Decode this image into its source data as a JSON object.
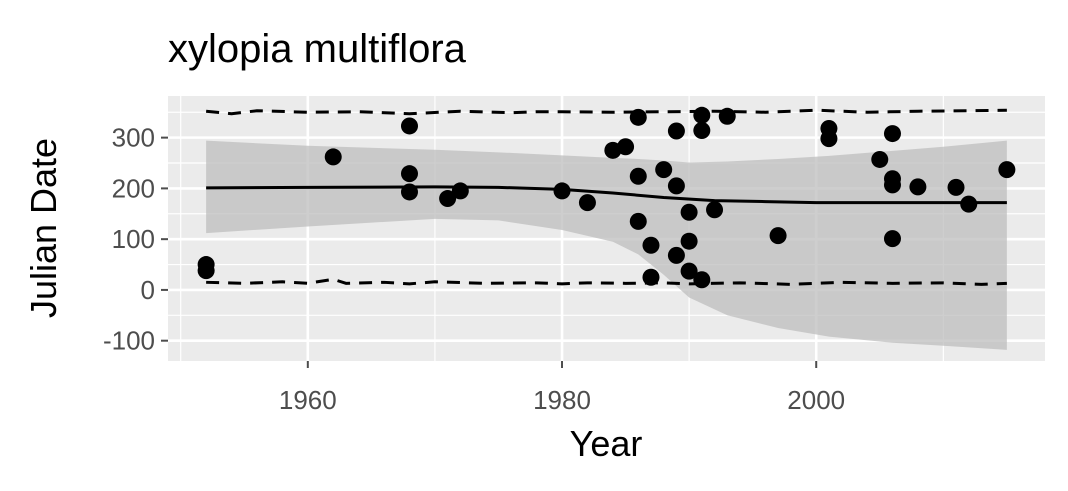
{
  "chart_data": {
    "type": "scatter",
    "title": "xylopia multiflora",
    "xlabel": "Year",
    "ylabel": "Julian Date",
    "xlim": [
      1949,
      2018
    ],
    "ylim": [
      -140,
      382
    ],
    "x_ticks": [
      1960,
      1980,
      2000
    ],
    "y_ticks": [
      300,
      200,
      100,
      0,
      -100
    ],
    "x_tick_labels": [
      "1960",
      "1980",
      "2000"
    ],
    "y_tick_labels": [
      "300",
      "200",
      "100",
      "0",
      "-100"
    ],
    "grid": true,
    "legend": "none",
    "colors": {
      "panel": "#ebebeb",
      "grid": "#ffffff",
      "points": "#000000",
      "ribbon": "#bdbdbd",
      "trend": "#000000",
      "ticks": "#4d4d4d"
    },
    "series": [
      {
        "name": "observations",
        "kind": "points",
        "points": [
          [
            1952,
            50
          ],
          [
            1952,
            38
          ],
          [
            1962,
            262
          ],
          [
            1968,
            323
          ],
          [
            1968,
            229
          ],
          [
            1968,
            193
          ],
          [
            1971,
            180
          ],
          [
            1972,
            195
          ],
          [
            1980,
            195
          ],
          [
            1982,
            172
          ],
          [
            1984,
            275
          ],
          [
            1985,
            282
          ],
          [
            1986,
            340
          ],
          [
            1986,
            224
          ],
          [
            1986,
            135
          ],
          [
            1987,
            88
          ],
          [
            1987,
            25
          ],
          [
            1988,
            237
          ],
          [
            1989,
            313
          ],
          [
            1989,
            205
          ],
          [
            1989,
            68
          ],
          [
            1990,
            153
          ],
          [
            1990,
            96
          ],
          [
            1990,
            37
          ],
          [
            1991,
            344
          ],
          [
            1991,
            314
          ],
          [
            1991,
            20
          ],
          [
            1992,
            158
          ],
          [
            1993,
            342
          ],
          [
            1997,
            107
          ],
          [
            2001,
            318
          ],
          [
            2001,
            298
          ],
          [
            2005,
            257
          ],
          [
            2006,
            308
          ],
          [
            2006,
            219
          ],
          [
            2006,
            207
          ],
          [
            2006,
            101
          ],
          [
            2008,
            203
          ],
          [
            2011,
            202
          ],
          [
            2012,
            169
          ],
          [
            2015,
            237
          ]
        ]
      },
      {
        "name": "trend",
        "kind": "line",
        "points": [
          [
            1952,
            201
          ],
          [
            1960,
            202
          ],
          [
            1970,
            203
          ],
          [
            1975,
            202
          ],
          [
            1980,
            198
          ],
          [
            1984,
            191
          ],
          [
            1988,
            182
          ],
          [
            1992,
            176
          ],
          [
            1996,
            174
          ],
          [
            2000,
            172
          ],
          [
            2005,
            172
          ],
          [
            2010,
            172
          ],
          [
            2015,
            172
          ]
        ]
      },
      {
        "name": "confidence band",
        "kind": "ribbon",
        "x": [
          1952,
          1960,
          1970,
          1975,
          1980,
          1984,
          1986,
          1988,
          1990,
          1993,
          1997,
          2001,
          2006,
          2010,
          2015
        ],
        "upper": [
          294,
          284,
          276,
          271,
          265,
          260,
          258,
          255,
          251,
          253,
          258,
          264,
          274,
          282,
          294
        ],
        "lower": [
          112,
          125,
          140,
          137,
          118,
          95,
          70,
          30,
          -15,
          -50,
          -75,
          -92,
          -104,
          -110,
          -118
        ]
      },
      {
        "name": "upper bound",
        "kind": "dashed-line",
        "points": [
          [
            1952,
            352
          ],
          [
            1954,
            347
          ],
          [
            1956,
            353
          ],
          [
            1960,
            350
          ],
          [
            1964,
            351
          ],
          [
            1968,
            347
          ],
          [
            1972,
            352
          ],
          [
            1976,
            349
          ],
          [
            1978,
            351
          ],
          [
            1980,
            351
          ],
          [
            1984,
            350
          ],
          [
            1988,
            351
          ],
          [
            1992,
            352
          ],
          [
            1996,
            350
          ],
          [
            2000,
            354
          ],
          [
            2004,
            350
          ],
          [
            2008,
            352
          ],
          [
            2012,
            353
          ],
          [
            2015,
            354
          ]
        ]
      },
      {
        "name": "lower bound",
        "kind": "dashed-line",
        "points": [
          [
            1952,
            15
          ],
          [
            1955,
            13
          ],
          [
            1958,
            16
          ],
          [
            1960,
            13
          ],
          [
            1962,
            21
          ],
          [
            1963,
            13
          ],
          [
            1966,
            15
          ],
          [
            1968,
            12
          ],
          [
            1970,
            16
          ],
          [
            1974,
            13
          ],
          [
            1978,
            14
          ],
          [
            1980,
            12
          ],
          [
            1982,
            14
          ],
          [
            1985,
            13
          ],
          [
            1988,
            14
          ],
          [
            1990,
            12
          ],
          [
            1994,
            14
          ],
          [
            1998,
            11
          ],
          [
            2002,
            15
          ],
          [
            2006,
            13
          ],
          [
            2010,
            14
          ],
          [
            2013,
            11
          ],
          [
            2015,
            13
          ]
        ]
      }
    ]
  }
}
